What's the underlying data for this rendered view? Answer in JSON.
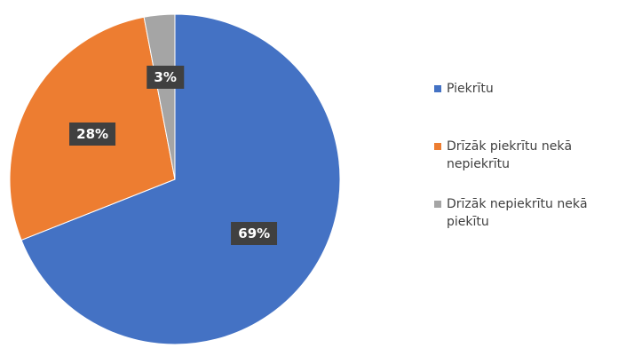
{
  "chart_data": {
    "type": "pie",
    "categories": [
      "Piekrītu",
      "Drīzāk piekrītu nekā nepiekrītu",
      "Drīzāk nepiekrītu nekā piekītu"
    ],
    "values": [
      69,
      28,
      3
    ],
    "labels": [
      "69%",
      "28%",
      "3%"
    ],
    "colors": [
      "#4472C4",
      "#ED7D31",
      "#A5A5A5"
    ],
    "legend_position": "right",
    "data_label_style": "dark-callout"
  }
}
